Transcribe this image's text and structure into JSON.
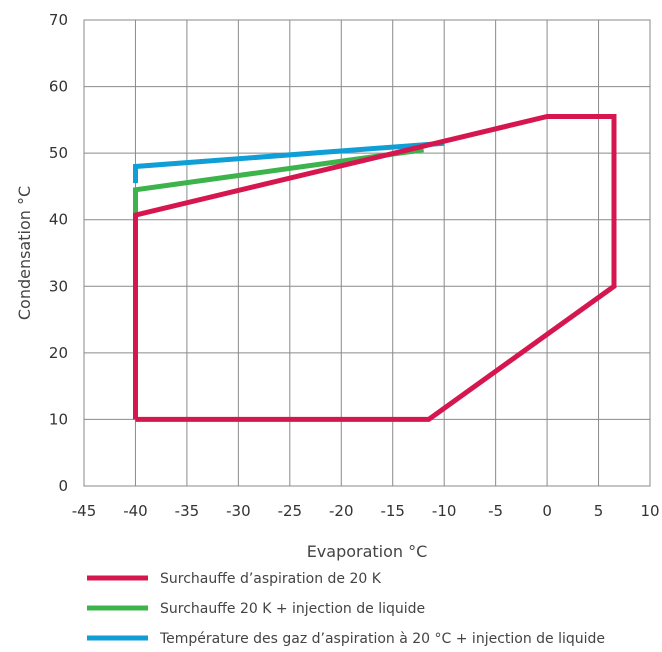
{
  "chart_data": {
    "type": "line",
    "title": "",
    "xlabel": "Evaporation °C",
    "ylabel": "Condensation °C",
    "xlim": [
      -45,
      10
    ],
    "ylim": [
      0,
      70
    ],
    "x_ticks": [
      -45,
      -40,
      -35,
      -30,
      -25,
      -20,
      -15,
      -10,
      -5,
      0,
      5,
      10
    ],
    "y_ticks": [
      0,
      10,
      20,
      30,
      40,
      50,
      60,
      70
    ],
    "grid": true,
    "legend_position": "bottom",
    "series": [
      {
        "name": "Surchauffe d’aspiration de 20 K",
        "color": "#d6174f",
        "points": [
          [
            -40,
            10
          ],
          [
            -11.5,
            10
          ],
          [
            6.5,
            30
          ],
          [
            6.5,
            55.5
          ],
          [
            0,
            55.5
          ],
          [
            -40,
            40.7
          ],
          [
            -40,
            10
          ]
        ]
      },
      {
        "name": "Surchauffe 20 K + injection de liquide",
        "color": "#3cb44b",
        "points": [
          [
            -40,
            40.7
          ],
          [
            -40,
            44.5
          ],
          [
            -12,
            50.5
          ]
        ]
      },
      {
        "name": "Température des gaz d’aspiration à 20 °C + injection de liquide",
        "color": "#0f9ed5",
        "points": [
          [
            -40,
            45.5
          ],
          [
            -40,
            48
          ],
          [
            -10,
            51.5
          ]
        ]
      }
    ]
  }
}
